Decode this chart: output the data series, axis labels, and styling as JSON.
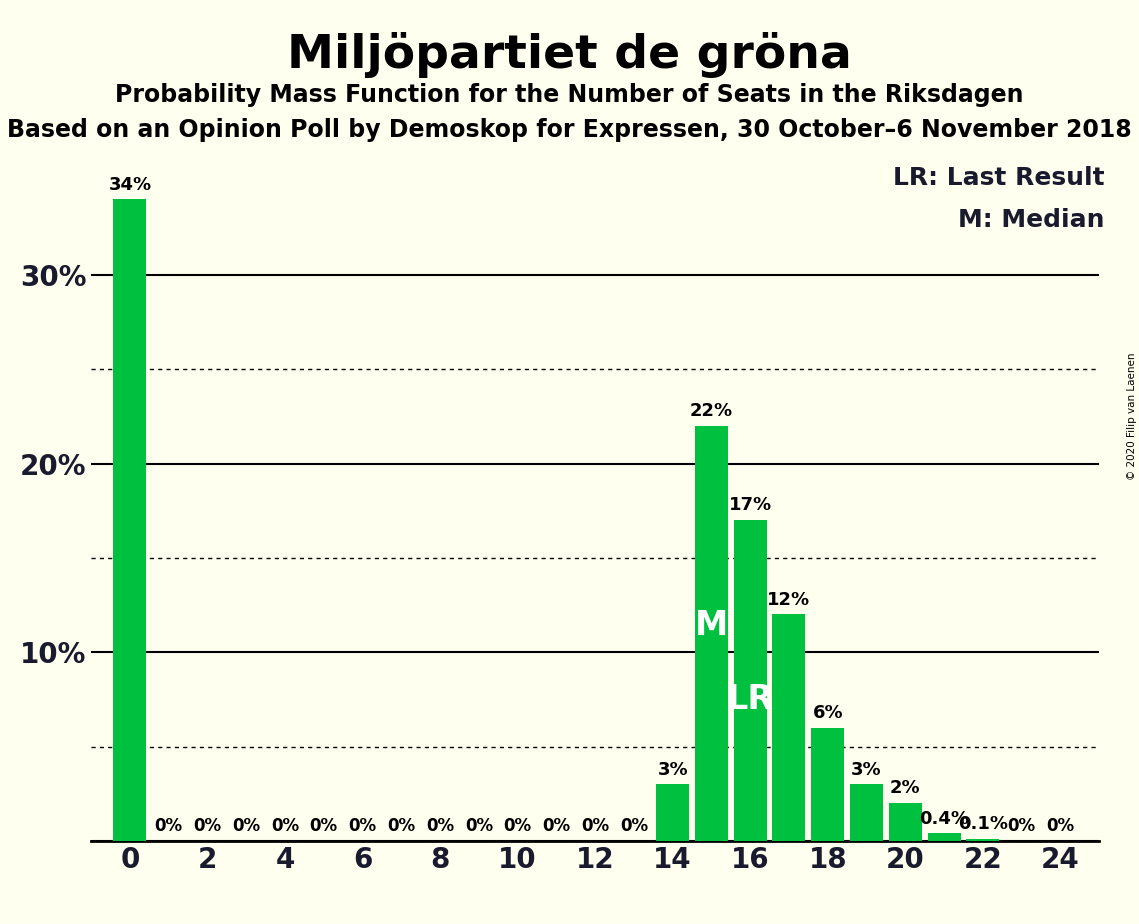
{
  "title": "Miljöpartiet de gröna",
  "subtitle1": "Probability Mass Function for the Number of Seats in the Riksdagen",
  "subtitle2": "Based on an Opinion Poll by Demoskop for Expressen, 30 October–6 November 2018",
  "copyright": "© 2020 Filip van Laenen",
  "seats": [
    0,
    1,
    2,
    3,
    4,
    5,
    6,
    7,
    8,
    9,
    10,
    11,
    12,
    13,
    14,
    15,
    16,
    17,
    18,
    19,
    20,
    21,
    22,
    23,
    24
  ],
  "probabilities": [
    34,
    0,
    0,
    0,
    0,
    0,
    0,
    0,
    0,
    0,
    0,
    0,
    0,
    0,
    3,
    22,
    17,
    12,
    6,
    3,
    2,
    0.4,
    0.1,
    0,
    0
  ],
  "bar_color": "#00c040",
  "background_color": "#fffff0",
  "median_seat": 15,
  "lr_seat": 16,
  "legend_lr": "LR: Last Result",
  "legend_m": "M: Median",
  "solid_gridlines": [
    0,
    10,
    20,
    30
  ],
  "dotted_gridlines": [
    5,
    15,
    25
  ],
  "title_fontsize": 34,
  "subtitle1_fontsize": 17,
  "subtitle2_fontsize": 17,
  "bar_label_fontsize": 13,
  "axis_label_fontsize": 20,
  "legend_fontsize": 18,
  "ylim_max": 36
}
